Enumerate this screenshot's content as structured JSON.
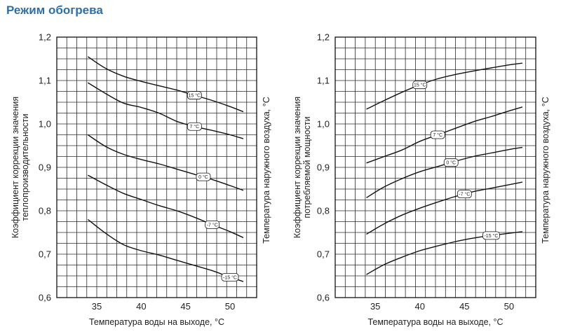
{
  "title": "Режим обогрева",
  "chart_data": [
    {
      "type": "line",
      "xlabel": "Температура воды на выходе, °C",
      "ylabel_line1": "Коэффициент коррекции значения",
      "ylabel_line2": "теплопроизводительности",
      "right_label": "Температура наружного воздуха, °C",
      "xlim": [
        30.5,
        53
      ],
      "ylim": [
        0.6,
        1.2
      ],
      "xticks": [
        35,
        40,
        45,
        50
      ],
      "yticks": [
        0.6,
        0.7,
        0.8,
        0.9,
        1.0,
        1.1,
        1.2
      ],
      "ytick_labels": [
        "0,6",
        "0,7",
        "0,8",
        "0,9",
        "1,0",
        "1,1",
        "1,2"
      ],
      "grid": true,
      "series": [
        {
          "name": "15 °C",
          "label_at": 46,
          "x": [
            34,
            36,
            38,
            40,
            42,
            44,
            46,
            48,
            50,
            51.5
          ],
          "y": [
            1.155,
            1.128,
            1.11,
            1.098,
            1.088,
            1.078,
            1.066,
            1.054,
            1.04,
            1.028
          ]
        },
        {
          "name": "7 °C",
          "label_at": 46,
          "x": [
            34,
            36,
            38,
            40,
            42,
            44,
            46,
            48,
            50,
            51.5
          ],
          "y": [
            1.095,
            1.07,
            1.048,
            1.038,
            1.025,
            1.006,
            0.994,
            0.985,
            0.975,
            0.966
          ]
        },
        {
          "name": "0 °C",
          "label_at": 47,
          "x": [
            34,
            36,
            38,
            40,
            42,
            44,
            46,
            48,
            50,
            51.5
          ],
          "y": [
            0.975,
            0.948,
            0.93,
            0.918,
            0.908,
            0.896,
            0.884,
            0.872,
            0.858,
            0.847
          ]
        },
        {
          "name": "-7 °C",
          "label_at": 48,
          "x": [
            34,
            36,
            38,
            40,
            42,
            44,
            46,
            48,
            50,
            51.5
          ],
          "y": [
            0.882,
            0.86,
            0.84,
            0.826,
            0.812,
            0.8,
            0.785,
            0.768,
            0.752,
            0.738
          ]
        },
        {
          "name": "-15 °C",
          "label_at": 50,
          "x": [
            34,
            36,
            38,
            40,
            42,
            44,
            46,
            48,
            50,
            51.5
          ],
          "y": [
            0.78,
            0.748,
            0.722,
            0.708,
            0.698,
            0.686,
            0.674,
            0.662,
            0.647,
            0.637
          ]
        }
      ]
    },
    {
      "type": "line",
      "xlabel": "Температура воды на выходе, °C",
      "ylabel_line1": "Коэффициент коррекции значения",
      "ylabel_line2": "потребляемой мощности",
      "right_label": "Температура наружного воздуха, °C",
      "xlim": [
        30.5,
        53
      ],
      "ylim": [
        0.6,
        1.2
      ],
      "xticks": [
        35,
        40,
        45,
        50
      ],
      "yticks": [
        0.6,
        0.7,
        0.8,
        0.9,
        1.0,
        1.1,
        1.2
      ],
      "ytick_labels": [
        "0,6",
        "0,7",
        "0,8",
        "0,9",
        "1,0",
        "1,1",
        "1,2"
      ],
      "grid": true,
      "series": [
        {
          "name": "15 °C",
          "label_at": 40,
          "x": [
            34,
            36,
            38,
            40,
            42,
            44,
            46,
            48,
            50,
            51.5
          ],
          "y": [
            1.034,
            1.054,
            1.073,
            1.09,
            1.104,
            1.114,
            1.122,
            1.129,
            1.136,
            1.14
          ]
        },
        {
          "name": "7 °C",
          "label_at": 42,
          "x": [
            34,
            36,
            38,
            40,
            42,
            44,
            46,
            48,
            50,
            51.5
          ],
          "y": [
            0.91,
            0.925,
            0.94,
            0.96,
            0.975,
            0.99,
            1.005,
            1.017,
            1.03,
            1.039
          ]
        },
        {
          "name": "0 °C",
          "label_at": 43.5,
          "x": [
            34,
            36,
            38,
            40,
            42,
            44,
            46,
            48,
            50,
            51.5
          ],
          "y": [
            0.83,
            0.855,
            0.874,
            0.89,
            0.902,
            0.914,
            0.925,
            0.933,
            0.941,
            0.946
          ]
        },
        {
          "name": "-7 °C",
          "label_at": 45,
          "x": [
            34,
            36,
            38,
            40,
            42,
            44,
            46,
            48,
            50,
            51.5
          ],
          "y": [
            0.746,
            0.77,
            0.79,
            0.806,
            0.82,
            0.833,
            0.844,
            0.852,
            0.86,
            0.866
          ]
        },
        {
          "name": "-15 °C",
          "label_at": 48,
          "x": [
            34,
            36,
            38,
            40,
            42,
            44,
            46,
            48,
            50,
            51.5
          ],
          "y": [
            0.653,
            0.676,
            0.693,
            0.708,
            0.719,
            0.729,
            0.737,
            0.743,
            0.748,
            0.752
          ]
        }
      ]
    }
  ]
}
